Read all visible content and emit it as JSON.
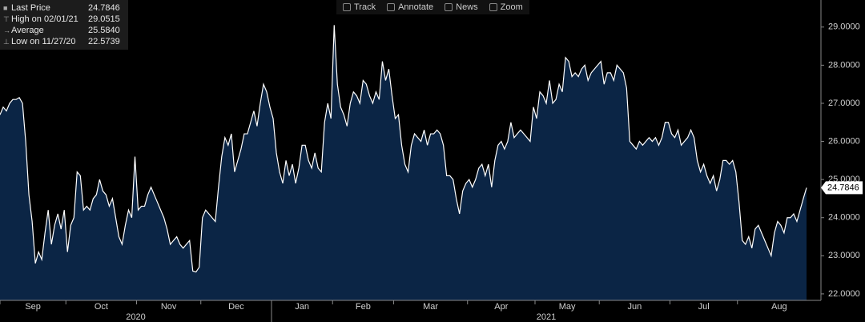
{
  "toolbar": [
    "Track",
    "Annotate",
    "News",
    "Zoom"
  ],
  "chart_data": {
    "type": "area",
    "legend": [
      {
        "name": "Last Price",
        "value": "24.7846"
      },
      {
        "name": "High on 02/01/21",
        "value": "29.0515"
      },
      {
        "name": "Average",
        "value": "25.5840"
      },
      {
        "name": "Low on 11/27/20",
        "value": "22.5739"
      }
    ],
    "last_value_label": "24.7846",
    "categories": [
      "Sep",
      null,
      null,
      null,
      null,
      null,
      null,
      null,
      null,
      null,
      null,
      null,
      null,
      null,
      null,
      null,
      null,
      null,
      null,
      null,
      null,
      "Oct",
      null,
      null,
      null,
      null,
      null,
      null,
      null,
      null,
      null,
      null,
      null,
      null,
      null,
      null,
      null,
      null,
      null,
      null,
      null,
      null,
      null,
      "Nov",
      null,
      null,
      null,
      null,
      null,
      null,
      null,
      null,
      null,
      null,
      null,
      null,
      null,
      null,
      null,
      null,
      null,
      null,
      null,
      "Dec",
      null,
      null,
      null,
      null,
      null,
      null,
      null,
      null,
      null,
      null,
      null,
      null,
      null,
      null,
      null,
      null,
      null,
      null,
      null,
      null,
      null,
      "Jan",
      null,
      null,
      null,
      null,
      null,
      null,
      null,
      null,
      null,
      null,
      null,
      null,
      null,
      null,
      null,
      null,
      null,
      null,
      "Feb",
      null,
      null,
      null,
      null,
      null,
      null,
      null,
      null,
      null,
      null,
      null,
      null,
      null,
      null,
      null,
      null,
      null,
      null,
      "Mar",
      null,
      null,
      null,
      null,
      null,
      null,
      null,
      null,
      null,
      null,
      null,
      null,
      null,
      null,
      null,
      null,
      null,
      null,
      null,
      null,
      null,
      null,
      "Apr",
      null,
      null,
      null,
      null,
      null,
      null,
      null,
      null,
      null,
      null,
      null,
      null,
      null,
      null,
      null,
      null,
      null,
      null,
      null,
      null,
      "May",
      null,
      null,
      null,
      null,
      null,
      null,
      null,
      null,
      null,
      null,
      null,
      null,
      null,
      null,
      null,
      null,
      null,
      null,
      null,
      "Jun",
      null,
      null,
      null,
      null,
      null,
      null,
      null,
      null,
      null,
      null,
      null,
      null,
      null,
      null,
      null,
      null,
      null,
      null,
      null,
      null,
      null,
      "Jul",
      null,
      null,
      null,
      null,
      null,
      null,
      null,
      null,
      null,
      null,
      null,
      null,
      null,
      null,
      null,
      null,
      null,
      null,
      null,
      null,
      "Aug",
      null,
      null,
      null,
      null,
      null,
      null,
      null,
      null,
      null,
      null,
      null,
      null,
      null,
      null,
      null,
      null,
      null,
      null,
      null,
      null,
      null
    ],
    "year_categories": [
      "2020",
      null,
      null,
      null,
      null,
      null,
      null,
      null,
      null,
      null,
      null,
      null,
      null,
      null,
      null,
      null,
      null,
      null,
      null,
      null,
      null,
      null,
      null,
      null,
      null,
      null,
      null,
      null,
      null,
      null,
      null,
      null,
      null,
      null,
      null,
      null,
      null,
      null,
      null,
      null,
      null,
      null,
      null,
      null,
      null,
      null,
      null,
      null,
      null,
      null,
      null,
      null,
      null,
      null,
      null,
      null,
      null,
      null,
      null,
      null,
      null,
      null,
      null,
      null,
      null,
      null,
      null,
      null,
      null,
      null,
      null,
      null,
      null,
      null,
      null,
      null,
      null,
      null,
      null,
      null,
      null,
      null,
      null,
      null,
      null,
      "2021",
      null,
      null,
      null,
      null,
      null,
      null,
      null,
      null,
      null,
      null,
      null,
      null,
      null,
      null,
      null,
      null,
      null,
      null,
      null,
      null,
      null,
      null,
      null,
      null,
      null,
      null,
      null,
      null,
      null,
      null,
      null,
      null,
      null,
      null,
      null,
      null,
      null,
      null,
      null,
      null,
      null,
      null,
      null,
      null,
      null,
      null,
      null,
      null,
      null,
      null,
      null,
      null,
      null,
      null,
      null,
      null,
      null,
      null,
      null,
      null,
      null,
      null,
      null,
      null,
      null,
      null,
      null,
      null,
      null,
      null,
      null,
      null,
      null,
      null,
      null,
      null,
      null,
      null,
      null,
      null,
      null,
      null,
      null,
      null,
      null,
      null,
      null,
      null,
      null,
      null,
      null,
      null,
      null,
      null,
      null,
      null,
      null,
      null,
      null,
      null,
      null,
      null,
      null,
      null,
      null,
      null,
      null,
      null,
      null,
      null,
      null,
      null,
      null,
      null,
      null,
      null,
      null,
      null,
      null,
      null,
      null,
      null,
      null,
      null,
      null,
      null,
      null,
      null,
      null,
      null,
      null,
      null,
      null,
      null,
      null,
      null,
      null,
      null,
      null,
      null,
      null,
      null,
      null,
      null,
      null,
      null,
      null,
      null,
      null,
      null,
      null,
      null,
      null,
      null,
      null,
      null,
      null,
      null,
      null,
      null,
      null,
      null,
      null,
      null,
      null,
      null
    ],
    "series": [
      {
        "name": "Last Price",
        "color": "#ffffff",
        "fill": "#0b2545",
        "values": [
          26.7,
          26.9,
          26.8,
          27.0,
          27.1,
          27.1,
          27.15,
          27.0,
          26.0,
          24.6,
          23.9,
          22.8,
          23.1,
          22.9,
          23.6,
          24.2,
          23.3,
          23.8,
          24.1,
          23.7,
          24.2,
          23.1,
          23.8,
          24.0,
          25.2,
          25.1,
          24.2,
          24.3,
          24.2,
          24.5,
          24.6,
          25.0,
          24.7,
          24.6,
          24.3,
          24.5,
          24.0,
          23.5,
          23.3,
          23.8,
          24.2,
          24.0,
          25.6,
          24.2,
          24.3,
          24.3,
          24.6,
          24.8,
          24.6,
          24.4,
          24.2,
          24.0,
          23.7,
          23.3,
          23.4,
          23.5,
          23.3,
          23.2,
          23.3,
          23.4,
          22.6,
          22.5739,
          22.7,
          24.0,
          24.2,
          24.1,
          24.0,
          23.9,
          24.8,
          25.6,
          26.1,
          25.9,
          26.2,
          25.2,
          25.5,
          25.8,
          26.2,
          26.2,
          26.5,
          26.8,
          26.4,
          27.0,
          27.5,
          27.3,
          26.9,
          26.6,
          25.7,
          25.2,
          24.9,
          25.5,
          25.1,
          25.4,
          24.9,
          25.3,
          25.9,
          25.9,
          25.5,
          25.3,
          25.7,
          25.3,
          25.2,
          26.5,
          27.0,
          26.6,
          29.0515,
          27.5,
          26.9,
          26.7,
          26.4,
          27.0,
          27.3,
          27.2,
          27.0,
          27.6,
          27.5,
          27.2,
          27.0,
          27.3,
          27.1,
          28.1,
          27.6,
          27.9,
          27.2,
          26.6,
          26.7,
          25.9,
          25.4,
          25.2,
          25.9,
          26.2,
          26.1,
          26.0,
          26.3,
          25.9,
          26.2,
          26.2,
          26.3,
          26.2,
          25.9,
          25.1,
          25.1,
          25.0,
          24.5,
          24.1,
          24.7,
          24.9,
          25.0,
          24.8,
          25.0,
          25.3,
          25.4,
          25.1,
          25.4,
          24.8,
          25.5,
          25.9,
          26.0,
          25.8,
          26.0,
          26.5,
          26.1,
          26.2,
          26.3,
          26.2,
          26.1,
          26.0,
          26.9,
          26.6,
          27.3,
          27.2,
          27.0,
          27.6,
          27.0,
          27.1,
          27.5,
          27.3,
          28.2,
          28.1,
          27.7,
          27.8,
          27.7,
          27.9,
          28.0,
          27.6,
          27.8,
          27.9,
          28.0,
          28.1,
          27.5,
          27.8,
          27.8,
          27.6,
          28.0,
          27.9,
          27.8,
          27.4,
          26.0,
          25.9,
          25.8,
          26.0,
          25.9,
          26.0,
          26.1,
          26.0,
          26.1,
          25.9,
          26.1,
          26.5,
          26.5,
          26.2,
          26.1,
          26.3,
          25.9,
          26.0,
          26.1,
          26.3,
          26.1,
          25.5,
          25.2,
          25.4,
          25.1,
          24.9,
          25.1,
          24.7,
          25.0,
          25.5,
          25.5,
          25.4,
          25.5,
          25.2,
          24.4,
          23.4,
          23.3,
          23.5,
          23.2,
          23.7,
          23.8,
          23.6,
          23.4,
          23.2,
          23.0,
          23.6,
          23.9,
          23.8,
          23.6,
          24.0,
          24.0,
          24.1,
          23.9,
          24.2,
          24.5,
          24.7846
        ]
      }
    ],
    "ylim": [
      21.83,
      29.71
    ],
    "yticks": [
      {
        "value": 22,
        "label": "22.0000"
      },
      {
        "value": 23,
        "label": "23.0000"
      },
      {
        "value": 24,
        "label": "24.0000"
      },
      {
        "value": 25,
        "label": "25.0000"
      },
      {
        "value": 26,
        "label": "26.0000"
      },
      {
        "value": 27,
        "label": "27.0000"
      },
      {
        "value": 28,
        "label": "28.0000"
      },
      {
        "value": 29,
        "label": "29.0000"
      }
    ],
    "grid": false
  }
}
